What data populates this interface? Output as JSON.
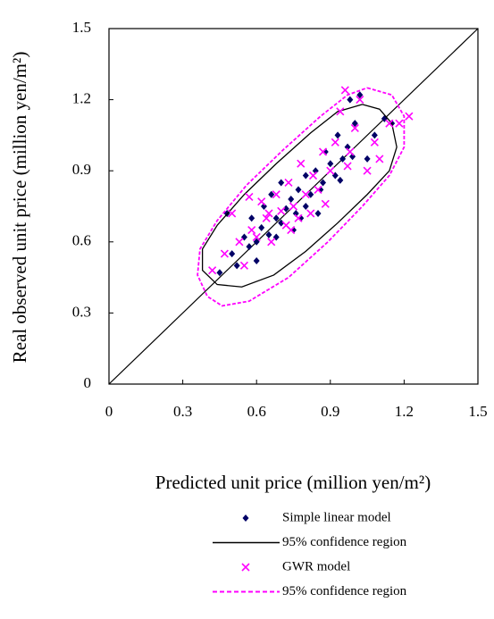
{
  "chart_data": {
    "type": "scatter",
    "x_label": "Predicted unit price (million yen/m²)",
    "y_label": "Real observed unit price (million yen/m²)",
    "xlim": [
      0,
      1.5
    ],
    "ylim": [
      0,
      1.5
    ],
    "xticks": [
      0,
      0.3,
      0.6,
      0.9,
      1.2,
      1.5
    ],
    "yticks": [
      0,
      0.3,
      0.6,
      0.9,
      1.2,
      1.5
    ],
    "legend_position": "bottom",
    "reference_line": {
      "x": [
        0,
        1.5
      ],
      "y": [
        0,
        1.5
      ],
      "color": "#000000"
    },
    "series": [
      {
        "name": "Simple linear model",
        "type": "scatter",
        "marker": "diamond",
        "color": "#000066",
        "x": [
          0.45,
          0.48,
          0.5,
          0.52,
          0.55,
          0.57,
          0.58,
          0.6,
          0.62,
          0.63,
          0.65,
          0.66,
          0.68,
          0.7,
          0.7,
          0.72,
          0.74,
          0.75,
          0.77,
          0.78,
          0.8,
          0.8,
          0.82,
          0.84,
          0.85,
          0.87,
          0.88,
          0.9,
          0.92,
          0.93,
          0.95,
          0.97,
          0.98,
          1.0,
          1.02,
          1.05,
          1.08,
          1.12,
          1.15,
          0.6,
          0.68,
          0.76,
          0.86,
          0.94,
          0.99
        ],
        "y": [
          0.47,
          0.72,
          0.55,
          0.5,
          0.62,
          0.58,
          0.7,
          0.6,
          0.66,
          0.75,
          0.63,
          0.8,
          0.7,
          0.68,
          0.85,
          0.74,
          0.78,
          0.65,
          0.82,
          0.7,
          0.88,
          0.75,
          0.8,
          0.9,
          0.72,
          0.85,
          0.98,
          0.93,
          0.88,
          1.05,
          0.95,
          1.0,
          1.2,
          1.1,
          1.22,
          0.95,
          1.05,
          1.12,
          1.1,
          0.52,
          0.62,
          0.72,
          0.82,
          0.86,
          0.96
        ]
      },
      {
        "name": "95% confidence region",
        "type": "line",
        "dashed": false,
        "color": "#000000",
        "x": [
          1.03,
          1.1,
          1.15,
          1.17,
          1.14,
          1.05,
          0.93,
          0.8,
          0.67,
          0.54,
          0.44,
          0.38,
          0.38,
          0.44,
          0.55,
          0.68,
          0.82,
          0.93,
          1.03
        ],
        "y": [
          1.18,
          1.16,
          1.1,
          1.0,
          0.9,
          0.8,
          0.68,
          0.56,
          0.46,
          0.41,
          0.42,
          0.48,
          0.57,
          0.67,
          0.8,
          0.93,
          1.06,
          1.15,
          1.18
        ]
      },
      {
        "name": "GWR model",
        "type": "scatter",
        "marker": "x",
        "color": "#ff00ff",
        "x": [
          0.42,
          0.47,
          0.5,
          0.53,
          0.55,
          0.58,
          0.6,
          0.62,
          0.64,
          0.66,
          0.68,
          0.7,
          0.72,
          0.73,
          0.75,
          0.77,
          0.78,
          0.8,
          0.82,
          0.83,
          0.85,
          0.87,
          0.9,
          0.92,
          0.94,
          0.96,
          0.98,
          1.0,
          1.02,
          1.05,
          1.08,
          1.1,
          1.14,
          1.18,
          1.22,
          0.65,
          0.74,
          0.88,
          0.97,
          0.57
        ],
        "y": [
          0.48,
          0.55,
          0.72,
          0.6,
          0.5,
          0.65,
          0.62,
          0.77,
          0.7,
          0.6,
          0.8,
          0.73,
          0.67,
          0.85,
          0.75,
          0.7,
          0.93,
          0.8,
          0.72,
          0.88,
          0.82,
          0.98,
          0.9,
          1.02,
          1.15,
          1.24,
          0.98,
          1.08,
          1.2,
          0.9,
          1.02,
          0.95,
          1.1,
          1.1,
          1.13,
          0.72,
          0.65,
          0.76,
          0.92,
          0.79
        ]
      },
      {
        "name": "95% confidence region",
        "type": "line",
        "dashed": true,
        "color": "#ff00ff",
        "x": [
          1.05,
          1.15,
          1.2,
          1.2,
          1.14,
          1.03,
          0.89,
          0.73,
          0.57,
          0.46,
          0.4,
          0.36,
          0.37,
          0.44,
          0.56,
          0.71,
          0.86,
          0.97,
          1.05
        ],
        "y": [
          1.25,
          1.22,
          1.13,
          1.0,
          0.88,
          0.75,
          0.6,
          0.45,
          0.35,
          0.33,
          0.37,
          0.46,
          0.57,
          0.69,
          0.84,
          0.99,
          1.13,
          1.22,
          1.25
        ]
      }
    ]
  }
}
